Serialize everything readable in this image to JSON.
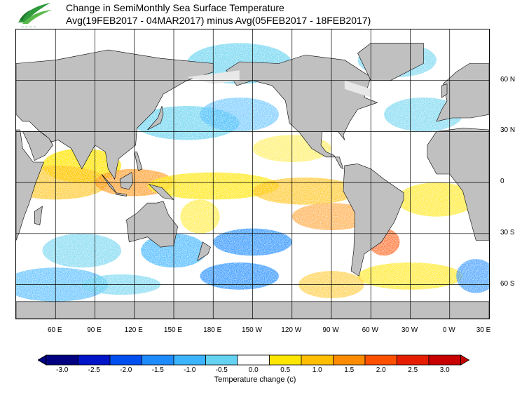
{
  "title_line1": "Change in SemiMonthly Sea Surface Temperature",
  "title_line2": "Avg(19FEB2017 - 04MAR2017) minus Avg(05FEB2017 - 18FEB2017)",
  "logo_icon": "noaa-bird-logo-icon",
  "lat_labels": [
    "60 N",
    "30 N",
    "0",
    "30 S",
    "60 S"
  ],
  "lon_labels": [
    "60 E",
    "90 E",
    "120 E",
    "150 E",
    "180 E",
    "150 W",
    "120 W",
    "90 W",
    "60 W",
    "30 W",
    "0 W",
    "30 E"
  ],
  "colorbar": {
    "title": "Temperature change  (c)",
    "labels": [
      "-3.0",
      "-2.5",
      "-2.0",
      "-1.5",
      "-1.0",
      "-0.5",
      "0.0",
      "0.5",
      "1.0",
      "1.5",
      "2.0",
      "2.5",
      "3.0"
    ],
    "colors": [
      "#000080",
      "#0014c8",
      "#0050f0",
      "#1e8cff",
      "#3cb4ff",
      "#64d2f0",
      "#ffffff",
      "#ffe600",
      "#ffbe00",
      "#ff8c00",
      "#ff5000",
      "#e61e00",
      "#c80000"
    ]
  },
  "map": {
    "land_color": "#c0c0c0",
    "ice_color": "#e8e8e8",
    "grid_color": "#000000",
    "lon_range": [
      30,
      390
    ],
    "lat_range": [
      -80,
      90
    ]
  }
}
